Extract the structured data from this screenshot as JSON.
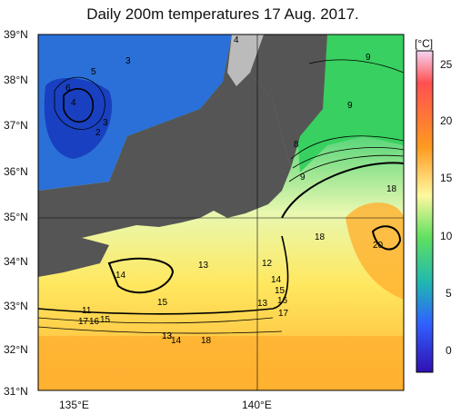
{
  "title": "Daily 200m temperatures 17 Aug. 2017.",
  "lat_labels": [
    "39°N",
    "38°N",
    "37°N",
    "36°N",
    "35°N",
    "34°N",
    "33°N",
    "32°N",
    "31°N"
  ],
  "lon_labels": [
    "135°E",
    "140°E"
  ],
  "colorbar": {
    "unit": "[°C]",
    "ticks": [
      "25",
      "20",
      "15",
      "10",
      "5",
      "0"
    ],
    "colors": [
      "#f0c8f0",
      "#ff4040",
      "#ff9a20",
      "#ffd040",
      "#fff8a0",
      "#c8f0a0",
      "#40d060",
      "#20b0b0",
      "#3060ff",
      "#3010c0"
    ]
  },
  "contour_labels": [
    "4",
    "3",
    "5",
    "6",
    "4",
    "3",
    "2",
    "9",
    "9",
    "8",
    "9",
    "18",
    "18",
    "20",
    "14",
    "13",
    "12",
    "14",
    "15",
    "16",
    "17",
    "15",
    "13",
    "11",
    "13",
    "17",
    "16",
    "15",
    "13",
    "14",
    "18"
  ]
}
